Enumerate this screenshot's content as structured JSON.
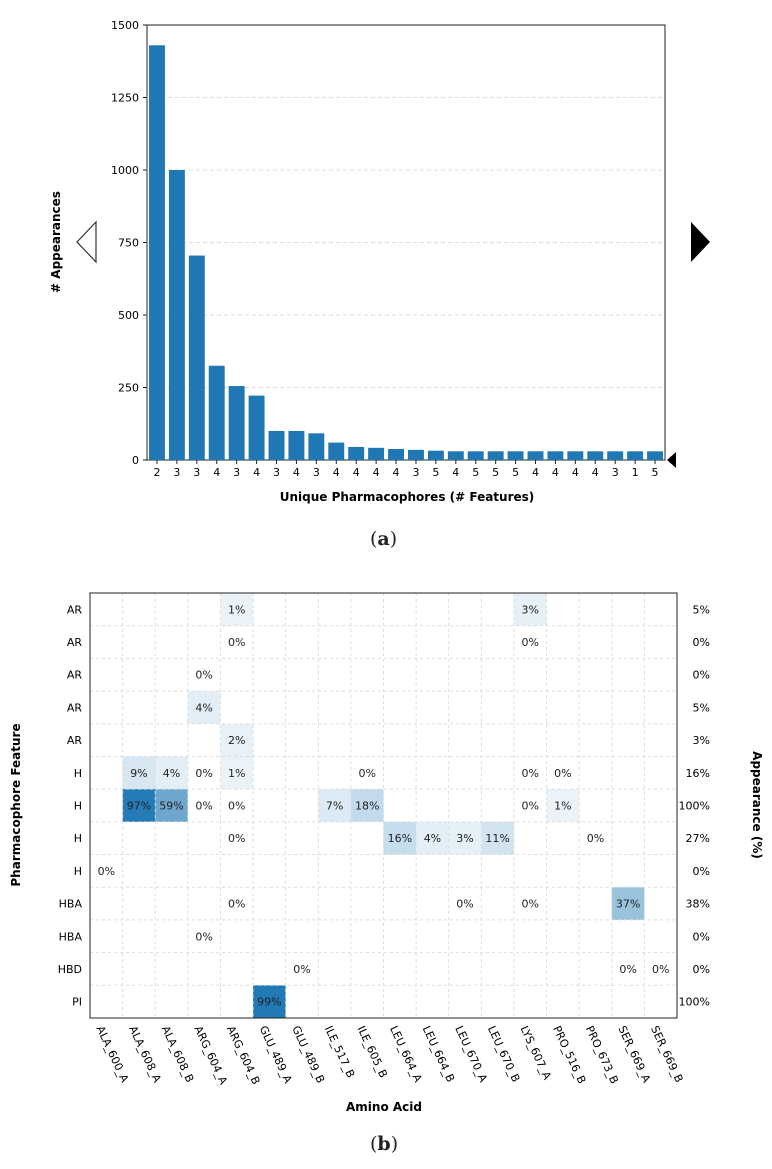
{
  "panel_a_label": "a",
  "panel_b_label": "b",
  "nav": {
    "prev_icon": "left-triangle-outline-icon",
    "next_icon": "right-triangle-filled-icon",
    "marker_icon": "left-triangle-small-icon"
  },
  "colors": {
    "bar": "#1f77b4",
    "heat_high": "#1f78b4",
    "heat_low": "#eef5fa",
    "grid": "#dddddd"
  },
  "chart_data": [
    {
      "type": "bar",
      "xlabel": "Unique Pharmacophores (# Features)",
      "ylabel": "# Appearances",
      "ylim": [
        0,
        1500
      ],
      "yticks": [
        0,
        250,
        500,
        750,
        1000,
        1250,
        1500
      ],
      "grid": "horizontal dashed",
      "categories": [
        "2",
        "3",
        "3",
        "4",
        "3",
        "4",
        "3",
        "4",
        "3",
        "4",
        "4",
        "4",
        "4",
        "3",
        "5",
        "4",
        "5",
        "5",
        "5",
        "4",
        "4",
        "4",
        "4",
        "3",
        "1",
        "5"
      ],
      "values": [
        1430,
        1000,
        705,
        325,
        255,
        222,
        100,
        100,
        92,
        60,
        45,
        42,
        38,
        35,
        32,
        30,
        30,
        30,
        30,
        30,
        30,
        30,
        30,
        30,
        30,
        30
      ]
    },
    {
      "type": "heatmap",
      "xlabel": "Amino Acid",
      "ylabel": "Pharmacophore Feature",
      "right_label": "Appearance (%)",
      "columns": [
        "ALA_600_A",
        "ALA_608_A",
        "ALA_608_B",
        "ARG_604_A",
        "ARG_604_B",
        "GLU_489_A",
        "GLU_489_B",
        "ILE_517_B",
        "ILE_605_B",
        "LEU_664_A",
        "LEU_664_B",
        "LEU_670_A",
        "LEU_670_B",
        "LYS_607_A",
        "PRO_516_B",
        "PRO_673_B",
        "SER_669_A",
        "SER_669_B"
      ],
      "rows": [
        "AR",
        "AR",
        "AR",
        "AR",
        "AR",
        "H",
        "H",
        "H",
        "H",
        "HBA",
        "HBA",
        "HBD",
        "PI"
      ],
      "row_totals": [
        "5%",
        "0%",
        "0%",
        "5%",
        "3%",
        "16%",
        "100%",
        "27%",
        "0%",
        "38%",
        "0%",
        "0%",
        "100%"
      ],
      "cells": [
        [
          null,
          null,
          null,
          null,
          1,
          null,
          null,
          null,
          null,
          null,
          null,
          null,
          null,
          3,
          null,
          null,
          null,
          null
        ],
        [
          null,
          null,
          null,
          null,
          0,
          null,
          null,
          null,
          null,
          null,
          null,
          null,
          null,
          0,
          null,
          null,
          null,
          null
        ],
        [
          null,
          null,
          null,
          0,
          null,
          null,
          null,
          null,
          null,
          null,
          null,
          null,
          null,
          null,
          null,
          null,
          null,
          null
        ],
        [
          null,
          null,
          null,
          4,
          null,
          null,
          null,
          null,
          null,
          null,
          null,
          null,
          null,
          null,
          null,
          null,
          null,
          null
        ],
        [
          null,
          null,
          null,
          null,
          2,
          null,
          null,
          null,
          null,
          null,
          null,
          null,
          null,
          null,
          null,
          null,
          null,
          null
        ],
        [
          null,
          9,
          4,
          0,
          1,
          null,
          null,
          null,
          0,
          null,
          null,
          null,
          null,
          0,
          0,
          null,
          null,
          null
        ],
        [
          null,
          97,
          59,
          0,
          0,
          null,
          null,
          7,
          18,
          null,
          null,
          null,
          null,
          0,
          1,
          null,
          null,
          null
        ],
        [
          null,
          null,
          null,
          null,
          0,
          null,
          null,
          null,
          null,
          16,
          4,
          3,
          11,
          null,
          null,
          0,
          null,
          null
        ],
        [
          0,
          null,
          null,
          null,
          null,
          null,
          null,
          null,
          null,
          null,
          null,
          null,
          null,
          null,
          null,
          null,
          null,
          null
        ],
        [
          null,
          null,
          null,
          null,
          0,
          null,
          null,
          null,
          null,
          null,
          null,
          0,
          null,
          0,
          null,
          null,
          37,
          null
        ],
        [
          null,
          null,
          null,
          0,
          null,
          null,
          null,
          null,
          null,
          null,
          null,
          null,
          null,
          null,
          null,
          null,
          null,
          null
        ],
        [
          null,
          null,
          null,
          null,
          null,
          null,
          0,
          null,
          null,
          null,
          null,
          null,
          null,
          null,
          null,
          null,
          0,
          0
        ],
        [
          null,
          null,
          null,
          null,
          null,
          99,
          null,
          null,
          null,
          null,
          null,
          null,
          null,
          null,
          null,
          null,
          null,
          null
        ]
      ]
    }
  ]
}
